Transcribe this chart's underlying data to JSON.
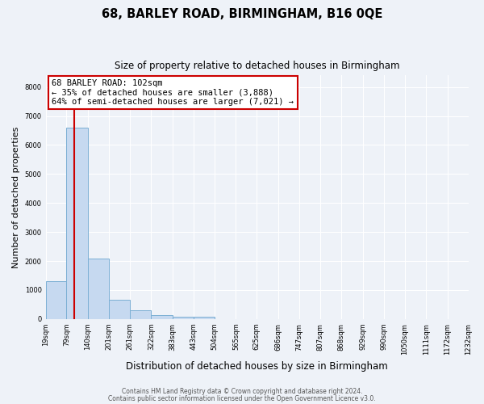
{
  "title": "68, BARLEY ROAD, BIRMINGHAM, B16 0QE",
  "subtitle": "Size of property relative to detached houses in Birmingham",
  "xlabel": "Distribution of detached houses by size in Birmingham",
  "ylabel": "Number of detached properties",
  "bar_values": [
    1300,
    6600,
    2080,
    650,
    300,
    130,
    80,
    80,
    0,
    0,
    0,
    0,
    0,
    0,
    0,
    0,
    0,
    0,
    0,
    0
  ],
  "bin_labels": [
    "19sqm",
    "79sqm",
    "140sqm",
    "201sqm",
    "261sqm",
    "322sqm",
    "383sqm",
    "443sqm",
    "504sqm",
    "565sqm",
    "625sqm",
    "686sqm",
    "747sqm",
    "807sqm",
    "868sqm",
    "929sqm",
    "990sqm",
    "1050sqm",
    "1111sqm",
    "1172sqm",
    "1232sqm"
  ],
  "bar_color": "#c6d9f0",
  "bar_edge_color": "#7bafd4",
  "annotation_line1": "68 BARLEY ROAD: 102sqm",
  "annotation_line2": "← 35% of detached houses are smaller (3,888)",
  "annotation_line3": "64% of semi-detached houses are larger (7,021) →",
  "annotation_box_color": "#ffffff",
  "annotation_box_edge_color": "#cc0000",
  "property_vline_color": "#cc0000",
  "ylim": [
    0,
    8400
  ],
  "yticks": [
    0,
    1000,
    2000,
    3000,
    4000,
    5000,
    6000,
    7000,
    8000
  ],
  "bin_edges": [
    19,
    79,
    140,
    201,
    261,
    322,
    383,
    443,
    504,
    565,
    625,
    686,
    747,
    807,
    868,
    929,
    990,
    1050,
    1111,
    1172,
    1232
  ],
  "footer1": "Contains HM Land Registry data © Crown copyright and database right 2024.",
  "footer2": "Contains public sector information licensed under the Open Government Licence v3.0.",
  "background_color": "#eef2f8",
  "grid_color": "#ffffff"
}
